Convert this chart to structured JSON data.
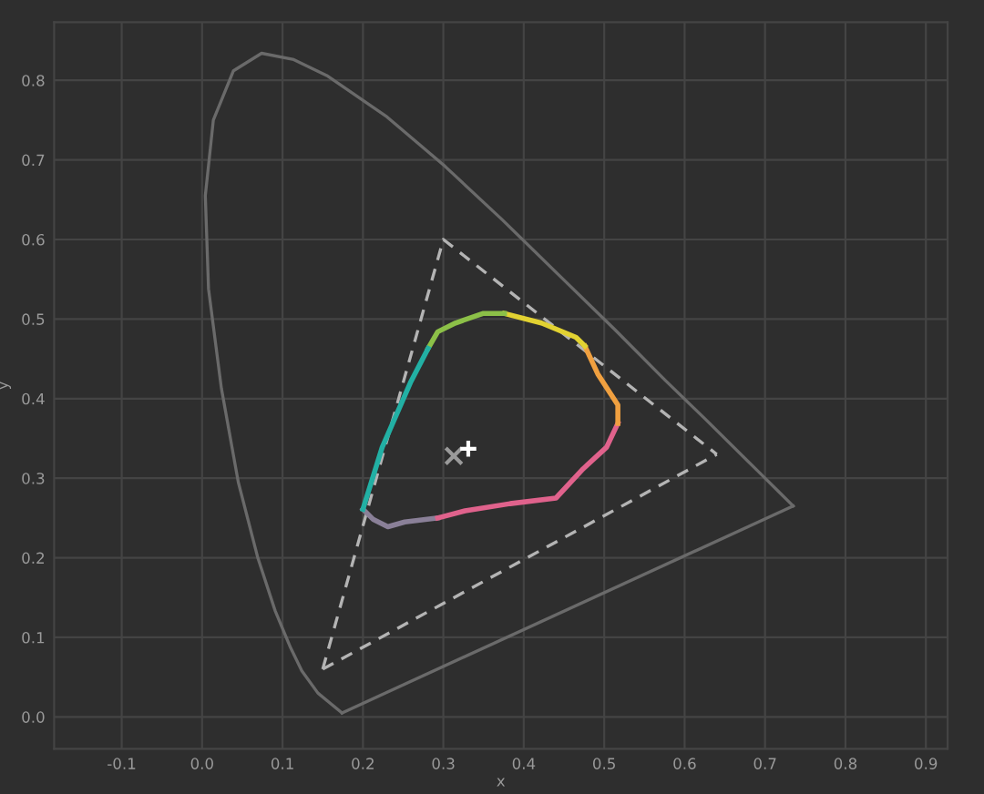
{
  "chart_data": {
    "type": "line",
    "xlabel": "x",
    "ylabel": "y",
    "xlim": [
      -0.184,
      0.927
    ],
    "ylim": [
      -0.04,
      0.873
    ],
    "xticks": [
      {
        "value": -0.1,
        "label": "-0.1"
      },
      {
        "value": 0,
        "label": "0.0"
      },
      {
        "value": 0.1,
        "label": "0.1"
      },
      {
        "value": 0.2,
        "label": "0.2"
      },
      {
        "value": 0.3,
        "label": "0.3"
      },
      {
        "value": 0.4,
        "label": "0.4"
      },
      {
        "value": 0.5,
        "label": "0.5"
      },
      {
        "value": 0.6,
        "label": "0.6"
      },
      {
        "value": 0.7,
        "label": "0.7"
      },
      {
        "value": 0.8,
        "label": "0.8"
      },
      {
        "value": 0.9,
        "label": "0.9"
      }
    ],
    "yticks": [
      {
        "value": 0,
        "label": "0.0"
      },
      {
        "value": 0.1,
        "label": "0.1"
      },
      {
        "value": 0.2,
        "label": "0.2"
      },
      {
        "value": 0.3,
        "label": "0.3"
      },
      {
        "value": 0.4,
        "label": "0.4"
      },
      {
        "value": 0.5,
        "label": "0.5"
      },
      {
        "value": 0.6,
        "label": "0.6"
      },
      {
        "value": 0.7,
        "label": "0.7"
      },
      {
        "value": 0.8,
        "label": "0.8"
      }
    ],
    "grid": true,
    "series": [
      {
        "color": "#6a6a6a",
        "line_style": "solid",
        "x": [
          0.174,
          0.144,
          0.124,
          0.11,
          0.091,
          0.069,
          0.045,
          0.024,
          0.008,
          0.004,
          0.014,
          0.039,
          0.074,
          0.114,
          0.155,
          0.23,
          0.302,
          0.373,
          0.444,
          0.513,
          0.575,
          0.627,
          0.692,
          0.719,
          0.735
        ],
        "values": [
          0.005,
          0.03,
          0.058,
          0.087,
          0.133,
          0.201,
          0.295,
          0.413,
          0.538,
          0.655,
          0.75,
          0.812,
          0.834,
          0.826,
          0.806,
          0.754,
          0.692,
          0.625,
          0.555,
          0.487,
          0.424,
          0.373,
          0.308,
          0.281,
          0.265
        ]
      },
      {
        "color": "#6a6a6a",
        "line_style": "solid",
        "x": [
          0.174,
          0.735
        ],
        "values": [
          0.005,
          0.265
        ]
      },
      {
        "color": "#b4b4b4",
        "line_style": "dashed",
        "x": [
          0.15,
          0.3,
          0.64
        ],
        "values": [
          0.06,
          0.6,
          0.33
        ]
      },
      {
        "color": "#b4b4b4",
        "line_style": "dashed",
        "x": [
          0.15,
          0.64
        ],
        "values": [
          0.06,
          0.33
        ]
      },
      {
        "color": "#8a8098",
        "line_style": "solid",
        "x": [
          0.2,
          0.213,
          0.231,
          0.252,
          0.293
        ],
        "values": [
          0.261,
          0.248,
          0.239,
          0.245,
          0.25
        ]
      },
      {
        "color": "#e0628c",
        "line_style": "solid",
        "x": [
          0.293,
          0.327,
          0.383,
          0.44,
          0.474,
          0.503,
          0.517
        ],
        "values": [
          0.25,
          0.259,
          0.268,
          0.275,
          0.312,
          0.339,
          0.369
        ]
      },
      {
        "color": "#f0a040",
        "line_style": "solid",
        "x": [
          0.517,
          0.517,
          0.492,
          0.476
        ],
        "values": [
          0.369,
          0.392,
          0.431,
          0.466
        ]
      },
      {
        "color": "#e2d232",
        "line_style": "solid",
        "x": [
          0.476,
          0.465,
          0.422,
          0.376
        ],
        "values": [
          0.466,
          0.477,
          0.495,
          0.507
        ]
      },
      {
        "color": "#8cc048",
        "line_style": "solid",
        "x": [
          0.376,
          0.349,
          0.315,
          0.293,
          0.281
        ],
        "values": [
          0.507,
          0.507,
          0.495,
          0.484,
          0.463
        ]
      },
      {
        "color": "#22b0a4",
        "line_style": "solid",
        "x": [
          0.281,
          0.259,
          0.224,
          0.2
        ],
        "values": [
          0.463,
          0.42,
          0.339,
          0.261
        ]
      },
      {
        "type": "scatter",
        "color": "#9a9a9a",
        "marker": "cross",
        "x": [
          0.313
        ],
        "values": [
          0.328
        ]
      },
      {
        "type": "scatter",
        "color": "#ffffff",
        "marker": "plus",
        "x": [
          0.331
        ],
        "values": [
          0.337
        ]
      }
    ]
  }
}
